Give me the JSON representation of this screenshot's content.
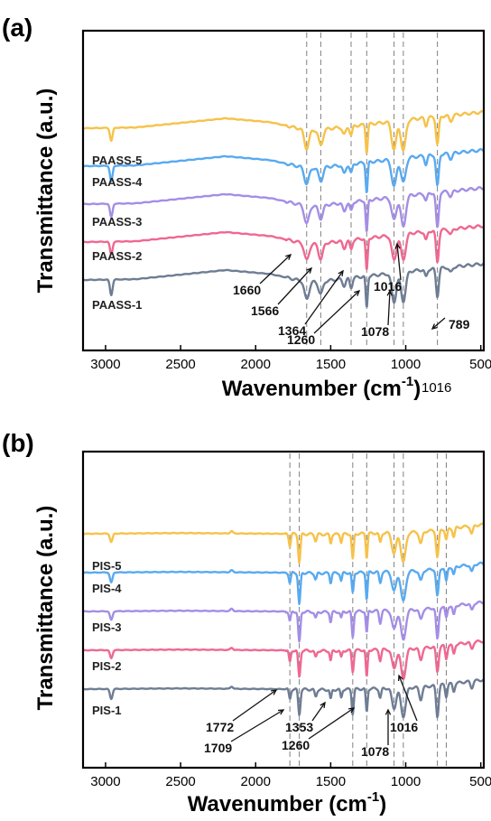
{
  "chart_data": [
    {
      "type": "line",
      "panel_label": "(a)",
      "xlabel": "Wavenumber (cm",
      "xlabel_sup": "-1",
      "xlabel_tail": ")",
      "ylabel": "Transmittance (a.u.)",
      "xlim": [
        3150,
        480
      ],
      "x_reversed": true,
      "xticks": [
        3000,
        2500,
        2000,
        1500,
        1000,
        500
      ],
      "grid": false,
      "reference_lines": [
        1660,
        1566,
        1364,
        1260,
        1078,
        1016,
        789
      ],
      "annotations": [
        {
          "text": "1660",
          "x": 1660
        },
        {
          "text": "1566",
          "x": 1566
        },
        {
          "text": "1364",
          "x": 1364
        },
        {
          "text": "1260",
          "x": 1260
        },
        {
          "text": "1078",
          "x": 1078
        },
        {
          "text": "1016",
          "x": 1016
        },
        {
          "text": "789",
          "x": 789
        }
      ],
      "extra_label": "1016",
      "series": [
        {
          "name": "PAASS-1",
          "color": "#6e7d94",
          "offset": 0.0
        },
        {
          "name": "PAASS-2",
          "color": "#ef6891",
          "offset": 1.0
        },
        {
          "name": "PAASS-3",
          "color": "#a48ee6",
          "offset": 2.0
        },
        {
          "name": "PAASS-4",
          "color": "#58aaf0",
          "offset": 3.0
        },
        {
          "name": "PAASS-5",
          "color": "#f6c24a",
          "offset": 4.0
        }
      ],
      "baseline_points": [
        [
          3150,
          0
        ],
        [
          2800,
          0.02
        ],
        [
          2200,
          0.25
        ],
        [
          1900,
          0.15
        ],
        [
          1720,
          0.0
        ],
        [
          1600,
          -0.05
        ],
        [
          900,
          0.25
        ],
        [
          500,
          0.4
        ]
      ],
      "bands": [
        {
          "x": 2962,
          "depth": 0.35,
          "width": 12
        },
        {
          "x": 1660,
          "depth": 0.45,
          "width": 22
        },
        {
          "x": 1566,
          "depth": 0.35,
          "width": 20
        },
        {
          "x": 1410,
          "depth": 0.2,
          "width": 15
        },
        {
          "x": 1364,
          "depth": 0.25,
          "width": 12
        },
        {
          "x": 1260,
          "depth": 0.75,
          "width": 9
        },
        {
          "x": 1078,
          "depth": 0.65,
          "width": 22
        },
        {
          "x": 1016,
          "depth": 0.7,
          "width": 22
        },
        {
          "x": 865,
          "depth": 0.2,
          "width": 12
        },
        {
          "x": 789,
          "depth": 0.8,
          "width": 13
        },
        {
          "x": 700,
          "depth": 0.15,
          "width": 15
        }
      ]
    },
    {
      "type": "line",
      "panel_label": "(b)",
      "xlabel": "Wavenumber (cm",
      "xlabel_sup": "-1",
      "xlabel_tail": ")",
      "ylabel": "Transmittance (a.u.)",
      "xlim": [
        3150,
        480
      ],
      "x_reversed": true,
      "xticks": [
        3000,
        2500,
        2000,
        1500,
        1000,
        500
      ],
      "grid": false,
      "reference_lines": [
        1772,
        1709,
        1353,
        1260,
        1078,
        1016,
        789,
        730
      ],
      "annotations": [
        {
          "text": "1772",
          "x": 1772
        },
        {
          "text": "1709",
          "x": 1709
        },
        {
          "text": "1353",
          "x": 1353
        },
        {
          "text": "1260",
          "x": 1260
        },
        {
          "text": "1078",
          "x": 1078
        },
        {
          "text": "1016",
          "x": 1016
        }
      ],
      "series": [
        {
          "name": "PIS-1",
          "color": "#6e7d94",
          "offset": 0.0
        },
        {
          "name": "PIS-2",
          "color": "#ef6891",
          "offset": 1.0
        },
        {
          "name": "PIS-3",
          "color": "#a48ee6",
          "offset": 2.0
        },
        {
          "name": "PIS-4",
          "color": "#58aaf0",
          "offset": 3.0
        },
        {
          "name": "PIS-5",
          "color": "#f6c24a",
          "offset": 4.0
        }
      ],
      "baseline_points": [
        [
          3150,
          0
        ],
        [
          2500,
          0.02
        ],
        [
          1800,
          0.0
        ],
        [
          1500,
          -0.02
        ],
        [
          900,
          0.05
        ],
        [
          500,
          0.25
        ]
      ],
      "bands": [
        {
          "x": 2962,
          "depth": 0.25,
          "width": 12
        },
        {
          "x": 2160,
          "depth": -0.06,
          "width": 12
        },
        {
          "x": 1772,
          "depth": 0.3,
          "width": 9
        },
        {
          "x": 1709,
          "depth": 0.8,
          "width": 10
        },
        {
          "x": 1600,
          "depth": 0.2,
          "width": 10
        },
        {
          "x": 1500,
          "depth": 0.25,
          "width": 8
        },
        {
          "x": 1430,
          "depth": 0.2,
          "width": 8
        },
        {
          "x": 1353,
          "depth": 0.65,
          "width": 9
        },
        {
          "x": 1260,
          "depth": 0.7,
          "width": 8
        },
        {
          "x": 1170,
          "depth": 0.3,
          "width": 10
        },
        {
          "x": 1078,
          "depth": 0.6,
          "width": 20
        },
        {
          "x": 1016,
          "depth": 0.75,
          "width": 22
        },
        {
          "x": 900,
          "depth": 0.3,
          "width": 14
        },
        {
          "x": 789,
          "depth": 0.8,
          "width": 12
        },
        {
          "x": 730,
          "depth": 0.35,
          "width": 10
        },
        {
          "x": 680,
          "depth": 0.25,
          "width": 10
        },
        {
          "x": 560,
          "depth": 0.2,
          "width": 12
        }
      ]
    }
  ]
}
